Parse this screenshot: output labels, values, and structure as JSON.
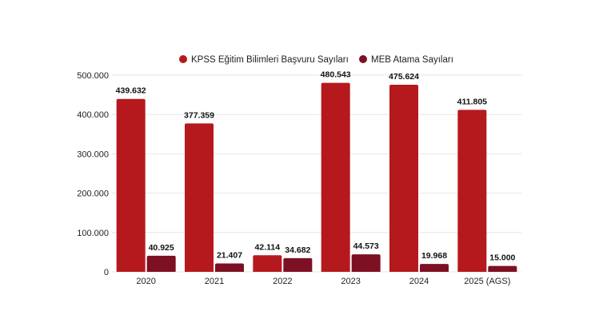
{
  "chart_data": {
    "type": "bar",
    "categories": [
      "2020",
      "2021",
      "2022",
      "2023",
      "2024",
      "2025 (AGS)"
    ],
    "series": [
      {
        "name": "KPSS Eğitim Bilimleri Başvuru Sayıları",
        "color": "#b5191d",
        "values": [
          439632,
          377359,
          42114,
          480543,
          475624,
          411805
        ],
        "labels": [
          "439.632",
          "377.359",
          "42.114",
          "480.543",
          "475.624",
          "411.805"
        ]
      },
      {
        "name": "MEB Atama Sayıları",
        "color": "#7d1023",
        "values": [
          40925,
          21407,
          34682,
          44573,
          19968,
          15000
        ],
        "labels": [
          "40.925",
          "21.407",
          "34.682",
          "44.573",
          "19.968",
          "15.000"
        ]
      }
    ],
    "yticks": [
      0,
      100000,
      200000,
      300000,
      400000,
      500000
    ],
    "ytick_labels": [
      "0",
      "100.000",
      "200.000",
      "300.000",
      "400.000",
      "500.000"
    ],
    "ylim": [
      0,
      500000
    ],
    "grid": true,
    "legend_position": "top-center"
  }
}
